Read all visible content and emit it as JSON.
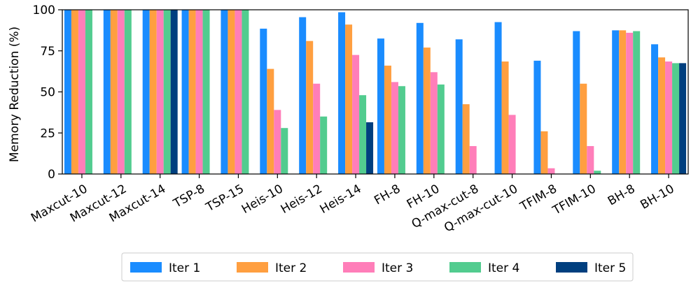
{
  "chart_data": {
    "type": "bar",
    "title": "",
    "xlabel": "",
    "ylabel": "Memory Reduction (%)",
    "ylim": [
      0,
      100
    ],
    "yticks": [
      0,
      25,
      50,
      75,
      100
    ],
    "grid": false,
    "legend_position": "bottom-center",
    "categories": [
      "Maxcut-10",
      "Maxcut-12",
      "Maxcut-14",
      "TSP-8",
      "TSP-15",
      "Heis-10",
      "Heis-12",
      "Heis-14",
      "FH-8",
      "FH-10",
      "Q-max-cut-8",
      "Q-max-cut-10",
      "TFIM-8",
      "TFIM-10",
      "BH-8",
      "BH-10"
    ],
    "series": [
      {
        "name": "Iter 1",
        "color": "#1a8cff",
        "values": [
          100,
          100,
          100,
          100,
          100,
          88.5,
          95.5,
          98.5,
          82.5,
          92,
          82,
          92.5,
          69,
          87,
          87.5,
          79
        ]
      },
      {
        "name": "Iter 2",
        "color": "#ff9f40",
        "values": [
          100,
          100,
          100,
          100,
          100,
          64,
          81,
          91,
          66,
          77,
          42.5,
          68.5,
          26,
          55,
          87.5,
          71
        ]
      },
      {
        "name": "Iter 3",
        "color": "#ff7eb9",
        "values": [
          100,
          100,
          100,
          100,
          100,
          39,
          55,
          72.5,
          56,
          62,
          17,
          36,
          3.5,
          17,
          86,
          68.5
        ]
      },
      {
        "name": "Iter 4",
        "color": "#52cc8f",
        "values": [
          100,
          100,
          100,
          100,
          100,
          28,
          35,
          48,
          53.5,
          54.5,
          null,
          null,
          null,
          2,
          87,
          67.5
        ]
      },
      {
        "name": "Iter 5",
        "color": "#003f7f",
        "values": [
          null,
          null,
          100,
          null,
          null,
          null,
          null,
          31.5,
          null,
          null,
          null,
          null,
          null,
          null,
          null,
          67.5
        ]
      }
    ]
  }
}
